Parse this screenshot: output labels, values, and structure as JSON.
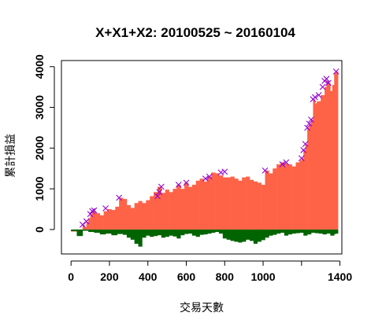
{
  "chart_data": {
    "type": "bar",
    "title": "X+X1+X2: 20100525 ~ 20160104",
    "xlabel": "交易天數",
    "ylabel": "累計損益",
    "xlim": [
      -50,
      1410
    ],
    "ylim": [
      -600,
      4150
    ],
    "xticks": [
      {
        "value": 0,
        "label": "0"
      },
      {
        "value": 200,
        "label": "200"
      },
      {
        "value": 400,
        "label": "400"
      },
      {
        "value": 600,
        "label": "600"
      },
      {
        "value": 800,
        "label": "800"
      },
      {
        "value": 1000,
        "label": "1000"
      },
      {
        "value": 1200,
        "label": ""
      },
      {
        "value": 1400,
        "label": "1400"
      }
    ],
    "yticks": [
      {
        "value": 0,
        "label": "0"
      },
      {
        "value": 1000,
        "label": "1000"
      },
      {
        "value": 2000,
        "label": "2000"
      },
      {
        "value": 3000,
        "label": "3000"
      },
      {
        "value": 4000,
        "label": "4000"
      }
    ],
    "grid": false,
    "legend": "none",
    "colors": {
      "profit": "#FF6347",
      "drawdown": "#006400",
      "new_high_marker": "#9400D3"
    },
    "series": [
      {
        "role": "profit",
        "x": [
          0,
          30,
          45,
          60,
          70,
          80,
          90,
          100,
          110,
          130,
          150,
          170,
          190,
          210,
          230,
          250,
          270,
          290,
          310,
          330,
          350,
          370,
          390,
          410,
          430,
          450,
          470,
          490,
          510,
          530,
          550,
          570,
          590,
          610,
          630,
          650,
          670,
          690,
          710,
          730,
          750,
          770,
          790,
          810,
          830,
          850,
          870,
          890,
          910,
          930,
          950,
          970,
          990,
          1010,
          1030,
          1050,
          1070,
          1090,
          1110,
          1130,
          1150,
          1170,
          1190,
          1200,
          1210,
          1220,
          1230,
          1240,
          1250,
          1260,
          1270,
          1280,
          1300,
          1320,
          1330,
          1340,
          1350,
          1360,
          1370,
          1380
        ],
        "values": [
          -50,
          -150,
          -120,
          120,
          60,
          180,
          280,
          380,
          450,
          400,
          350,
          450,
          500,
          480,
          560,
          780,
          750,
          600,
          530,
          650,
          700,
          650,
          720,
          820,
          920,
          1050,
          900,
          980,
          920,
          1000,
          1100,
          1000,
          1150,
          1050,
          1100,
          1200,
          1250,
          1180,
          1300,
          1400,
          1380,
          1330,
          1280,
          1280,
          1300,
          1250,
          1200,
          1280,
          1300,
          1220,
          1180,
          1150,
          1100,
          1450,
          1380,
          1500,
          1600,
          1650,
          1620,
          1600,
          1550,
          1650,
          1700,
          1750,
          1950,
          2100,
          2500,
          2600,
          2700,
          3200,
          3100,
          3150,
          3300,
          3500,
          3650,
          3600,
          3400,
          3550,
          3850,
          3880
        ]
      },
      {
        "role": "drawdown",
        "x": [
          0,
          30,
          60,
          90,
          120,
          150,
          180,
          210,
          240,
          270,
          290,
          310,
          330,
          350,
          370,
          390,
          410,
          430,
          450,
          470,
          490,
          510,
          530,
          550,
          570,
          590,
          610,
          630,
          650,
          670,
          690,
          710,
          730,
          750,
          770,
          790,
          810,
          830,
          850,
          870,
          890,
          910,
          930,
          950,
          970,
          990,
          1010,
          1030,
          1050,
          1070,
          1090,
          1110,
          1130,
          1150,
          1170,
          1190,
          1210,
          1230,
          1250,
          1270,
          1290,
          1310,
          1330,
          1350,
          1370,
          1380
        ],
        "values": [
          -40,
          -160,
          -30,
          -60,
          -80,
          -120,
          -100,
          -140,
          -110,
          -130,
          -200,
          -250,
          -350,
          -420,
          -200,
          -150,
          -180,
          -160,
          -140,
          -200,
          -180,
          -150,
          -170,
          -220,
          -140,
          -110,
          -100,
          -150,
          -180,
          -130,
          -120,
          -100,
          -80,
          -60,
          -100,
          -220,
          -250,
          -280,
          -300,
          -320,
          -300,
          -250,
          -280,
          -350,
          -300,
          -260,
          -200,
          -150,
          -130,
          -100,
          -80,
          -150,
          -120,
          -100,
          -90,
          -80,
          -150,
          -120,
          -80,
          -90,
          -100,
          -120,
          -100,
          -150,
          -110,
          -100
        ]
      },
      {
        "role": "new_high_marker",
        "x": [
          60,
          80,
          100,
          110,
          120,
          180,
          250,
          450,
          460,
          470,
          560,
          600,
          700,
          720,
          780,
          800,
          1010,
          1100,
          1120,
          1200,
          1210,
          1220,
          1230,
          1240,
          1250,
          1260,
          1270,
          1290,
          1310,
          1320,
          1330,
          1340,
          1380
        ],
        "values": [
          120,
          200,
          380,
          450,
          470,
          520,
          780,
          820,
          920,
          1050,
          1100,
          1150,
          1250,
          1300,
          1400,
          1420,
          1450,
          1600,
          1650,
          1750,
          1950,
          2100,
          2500,
          2600,
          2700,
          3200,
          3250,
          3300,
          3500,
          3650,
          3700,
          3600,
          3880
        ]
      }
    ]
  }
}
